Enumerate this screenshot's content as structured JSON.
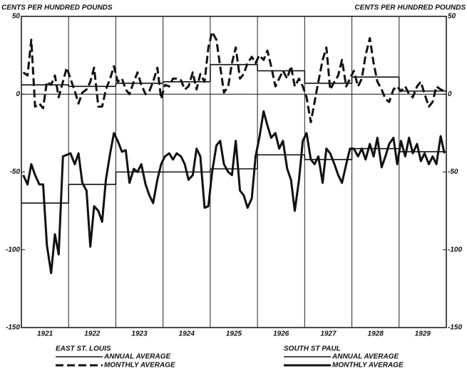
{
  "chart_data": {
    "type": "line",
    "ylabel": "CENTS PER HUNDRED POUNDS",
    "y2label": "CENTS PER HUNDRED POUNDS",
    "ylim": [
      -150,
      50
    ],
    "yticks": [
      50,
      0,
      -50,
      -100,
      -150
    ],
    "xlim": [
      1921,
      1930
    ],
    "xticks": [
      {
        "value": 1921.5,
        "label": "1921"
      },
      {
        "value": 1922.5,
        "label": "1922"
      },
      {
        "value": 1923.5,
        "label": "1923"
      },
      {
        "value": 1924.5,
        "label": "1924"
      },
      {
        "value": 1925.5,
        "label": "1925"
      },
      {
        "value": 1926.5,
        "label": "1926"
      },
      {
        "value": 1927.5,
        "label": "1927"
      },
      {
        "value": 1928.5,
        "label": "1928"
      },
      {
        "value": 1929.5,
        "label": "1929"
      }
    ],
    "xgrid": [
      1922,
      1923,
      1924,
      1925,
      1926,
      1927,
      1928,
      1929
    ],
    "x": [
      1921.04,
      1921.13,
      1921.21,
      1921.29,
      1921.38,
      1921.46,
      1921.54,
      1921.63,
      1921.71,
      1921.79,
      1921.88,
      1921.96,
      1922.04,
      1922.13,
      1922.21,
      1922.29,
      1922.38,
      1922.46,
      1922.54,
      1922.63,
      1922.71,
      1922.79,
      1922.88,
      1922.96,
      1923.04,
      1923.13,
      1923.21,
      1923.29,
      1923.38,
      1923.46,
      1923.54,
      1923.63,
      1923.71,
      1923.79,
      1923.88,
      1923.96,
      1924.04,
      1924.13,
      1924.21,
      1924.29,
      1924.38,
      1924.46,
      1924.54,
      1924.63,
      1924.71,
      1924.79,
      1924.88,
      1924.96,
      1925.04,
      1925.13,
      1925.21,
      1925.29,
      1925.38,
      1925.46,
      1925.54,
      1925.63,
      1925.71,
      1925.79,
      1925.88,
      1925.96,
      1926.04,
      1926.13,
      1926.21,
      1926.29,
      1926.38,
      1926.46,
      1926.54,
      1926.63,
      1926.71,
      1926.79,
      1926.88,
      1926.96,
      1927.04,
      1927.13,
      1927.21,
      1927.29,
      1927.38,
      1927.46,
      1927.54,
      1927.63,
      1927.71,
      1927.79,
      1927.88,
      1927.96,
      1928.04,
      1928.13,
      1928.21,
      1928.29,
      1928.38,
      1928.46,
      1928.54,
      1928.63,
      1928.71,
      1928.79,
      1928.88,
      1928.96,
      1929.04,
      1929.13,
      1929.21,
      1929.29,
      1929.38,
      1929.46,
      1929.54,
      1929.63,
      1929.71,
      1929.79,
      1929.88,
      1929.96
    ],
    "series": [
      {
        "group": "EAST ST. LOUIS",
        "name": "ANNUAL AVERAGE",
        "color": "#111",
        "dash": false,
        "weight": "light",
        "annual": true,
        "x": [
          1921,
          1922,
          1923,
          1924,
          1925,
          1926,
          1927,
          1928,
          1929
        ],
        "values": [
          6,
          5,
          7,
          8,
          19,
          15,
          7,
          11,
          2
        ]
      },
      {
        "group": "EAST ST. LOUIS",
        "name": "MONTHLY AVERAGE",
        "color": "#111",
        "dash": true,
        "weight": "heavy",
        "annual": false,
        "values": [
          14,
          12,
          35,
          -8,
          -6,
          -9,
          8,
          6,
          12,
          -2,
          8,
          17,
          10,
          2,
          -6,
          1,
          3,
          8,
          17,
          -8,
          -8,
          3,
          10,
          18,
          8,
          10,
          3,
          0,
          8,
          14,
          6,
          0,
          2,
          8,
          17,
          -3,
          6,
          5,
          10,
          10,
          9,
          3,
          5,
          14,
          3,
          13,
          8,
          30,
          40,
          35,
          18,
          1,
          5,
          20,
          30,
          10,
          13,
          20,
          24,
          20,
          25,
          22,
          28,
          18,
          5,
          10,
          15,
          10,
          18,
          5,
          10,
          5,
          -2,
          -18,
          -5,
          8,
          22,
          30,
          3,
          8,
          12,
          22,
          5,
          10,
          15,
          5,
          10,
          25,
          36,
          20,
          8,
          3,
          -3,
          -5,
          3,
          5,
          2,
          5,
          0,
          -2,
          5,
          8,
          0,
          -8,
          -5,
          5,
          3,
          2
        ]
      },
      {
        "group": "SOUTH ST PAUL",
        "name": "ANNUAL AVERAGE",
        "color": "#111",
        "dash": false,
        "weight": "light",
        "annual": true,
        "x": [
          1921,
          1922,
          1923,
          1924,
          1925,
          1926,
          1927,
          1928,
          1929
        ],
        "values": [
          -70,
          -58,
          -50,
          -50,
          -48,
          -39,
          -42,
          -35,
          -37
        ]
      },
      {
        "group": "SOUTH ST PAUL",
        "name": "MONTHLY AVERAGE",
        "color": "#111",
        "dash": false,
        "weight": "heavy",
        "annual": false,
        "values": [
          -52,
          -58,
          -45,
          -52,
          -58,
          -58,
          -97,
          -115,
          -90,
          -103,
          -40,
          -39,
          -38,
          -45,
          -38,
          -57,
          -62,
          -98,
          -72,
          -75,
          -82,
          -55,
          -38,
          -25,
          -30,
          -37,
          -36,
          -57,
          -48,
          -50,
          -45,
          -58,
          -65,
          -70,
          -55,
          -45,
          -40,
          -38,
          -42,
          -38,
          -40,
          -45,
          -55,
          -52,
          -35,
          -40,
          -73,
          -72,
          -50,
          -33,
          -30,
          -45,
          -50,
          -52,
          -30,
          -62,
          -65,
          -73,
          -67,
          -40,
          -28,
          -11,
          -20,
          -28,
          -25,
          -35,
          -30,
          -48,
          -55,
          -75,
          -55,
          -30,
          -25,
          -42,
          -45,
          -40,
          -57,
          -35,
          -38,
          -45,
          -52,
          -57,
          -45,
          -35,
          -35,
          -40,
          -35,
          -42,
          -32,
          -40,
          -28,
          -47,
          -40,
          -32,
          -28,
          -45,
          -30,
          -40,
          -28,
          -38,
          -32,
          -43,
          -38,
          -45,
          -40,
          -45,
          -27,
          -38
        ]
      }
    ]
  }
}
